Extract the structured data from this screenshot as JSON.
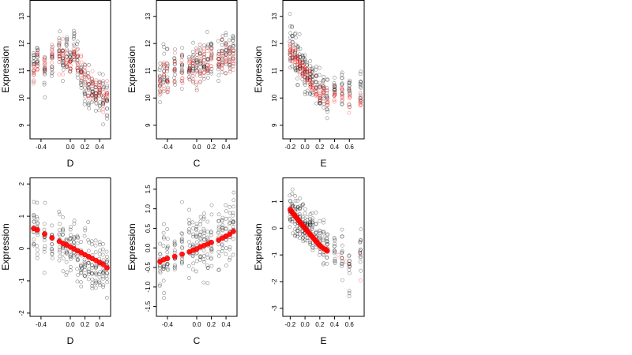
{
  "chart_data": [
    {
      "type": "scatter",
      "xlabel": "D",
      "ylabel": "Expression",
      "xlim": [
        -0.55,
        0.55
      ],
      "ylim": [
        8.5,
        13.6
      ],
      "xticks": [
        -0.4,
        0.0,
        0.2,
        0.4
      ],
      "xticklabels": [
        "-0.4",
        "0.0",
        "0.2",
        "0.4"
      ],
      "yticks": [
        9,
        10,
        11,
        12,
        13
      ],
      "yticklabels": [
        "9",
        "10",
        "11",
        "12",
        "13"
      ],
      "series": [
        {
          "color": "#000000",
          "style": "open-circle",
          "x_columns": [
            -0.5,
            -0.45,
            -0.35,
            -0.25,
            -0.15,
            -0.1,
            -0.05,
            0.0,
            0.05,
            0.1,
            0.15,
            0.2,
            0.25,
            0.3,
            0.35,
            0.4,
            0.45,
            0.5
          ],
          "y_means": [
            11.2,
            11.4,
            11.0,
            11.3,
            11.6,
            11.5,
            11.7,
            11.4,
            11.8,
            11.2,
            11.0,
            10.6,
            10.3,
            10.2,
            10.0,
            10.2,
            10.1,
            10.0
          ],
          "y_spread": 0.8
        },
        {
          "color": "#ff0000",
          "style": "open-circle",
          "x_columns": [
            -0.5,
            -0.45,
            -0.35,
            -0.25,
            -0.15,
            -0.1,
            -0.05,
            0.0,
            0.05,
            0.1,
            0.15,
            0.2,
            0.25,
            0.3,
            0.35,
            0.4,
            0.45,
            0.5
          ],
          "y_means": [
            11.0,
            11.3,
            11.2,
            11.4,
            11.5,
            11.6,
            11.5,
            11.3,
            11.5,
            11.3,
            11.1,
            10.8,
            10.5,
            10.4,
            10.2,
            10.3,
            10.0,
            10.1
          ],
          "y_spread": 0.6
        }
      ]
    },
    {
      "type": "scatter",
      "xlabel": "C",
      "ylabel": "Expression",
      "xlim": [
        -0.55,
        0.55
      ],
      "ylim": [
        8.5,
        13.6
      ],
      "xticks": [
        -0.4,
        0.0,
        0.2,
        0.4
      ],
      "xticklabels": [
        "-0.4",
        "0.0",
        "0.2",
        "0.4"
      ],
      "yticks": [
        9,
        10,
        11,
        12,
        13
      ],
      "yticklabels": [
        "9",
        "10",
        "11",
        "12",
        "13"
      ],
      "series": [
        {
          "color": "#000000",
          "style": "open-circle",
          "x_columns": [
            -0.5,
            -0.45,
            -0.4,
            -0.3,
            -0.2,
            -0.1,
            -0.05,
            0.0,
            0.05,
            0.1,
            0.15,
            0.2,
            0.3,
            0.35,
            0.4,
            0.45,
            0.5
          ],
          "y_means": [
            10.8,
            11.0,
            10.9,
            11.0,
            11.1,
            11.0,
            11.0,
            11.1,
            11.2,
            11.2,
            11.3,
            11.4,
            11.5,
            11.6,
            11.6,
            11.7,
            11.8
          ],
          "y_spread": 0.9
        },
        {
          "color": "#ff0000",
          "style": "open-circle",
          "x_columns": [
            -0.5,
            -0.45,
            -0.4,
            -0.3,
            -0.2,
            -0.1,
            -0.05,
            0.0,
            0.05,
            0.1,
            0.15,
            0.2,
            0.3,
            0.35,
            0.4,
            0.45,
            0.5
          ],
          "y_means": [
            10.6,
            10.9,
            10.8,
            10.9,
            11.0,
            11.0,
            11.1,
            11.0,
            11.2,
            11.3,
            11.2,
            11.4,
            11.3,
            11.5,
            11.5,
            11.6,
            11.7
          ],
          "y_spread": 0.7
        }
      ]
    },
    {
      "type": "scatter",
      "xlabel": "E",
      "ylabel": "Expression",
      "xlim": [
        -0.3,
        0.8
      ],
      "ylim": [
        8.5,
        13.6
      ],
      "xticks": [
        -0.2,
        0.0,
        0.2,
        0.4,
        0.6
      ],
      "xticklabels": [
        "-0.2",
        "0.0",
        "0.2",
        "0.4",
        "0.6"
      ],
      "yticks": [
        9,
        10,
        11,
        12,
        13
      ],
      "yticklabels": [
        "9",
        "10",
        "11",
        "12",
        "13"
      ],
      "series": [
        {
          "color": "#000000",
          "style": "open-circle",
          "x_columns": [
            -0.2,
            -0.17,
            -0.13,
            -0.1,
            -0.07,
            -0.03,
            0.0,
            0.03,
            0.07,
            0.1,
            0.15,
            0.2,
            0.25,
            0.3,
            0.4,
            0.5,
            0.6,
            0.75
          ],
          "y_means": [
            12.0,
            11.8,
            11.6,
            11.4,
            11.3,
            11.2,
            11.0,
            10.9,
            10.8,
            10.6,
            10.5,
            10.3,
            10.2,
            10.0,
            10.1,
            10.4,
            10.3,
            10.5
          ],
          "y_spread": 0.8
        },
        {
          "color": "#ff0000",
          "style": "open-circle",
          "x_columns": [
            -0.2,
            -0.17,
            -0.13,
            -0.1,
            -0.07,
            -0.03,
            0.0,
            0.03,
            0.07,
            0.1,
            0.15,
            0.2,
            0.25,
            0.3,
            0.4,
            0.5,
            0.6,
            0.75
          ],
          "y_means": [
            11.8,
            11.6,
            11.5,
            11.3,
            11.2,
            11.1,
            10.9,
            10.8,
            10.7,
            10.5,
            10.4,
            10.2,
            10.1,
            10.0,
            10.2,
            10.1,
            9.9,
            9.8
          ],
          "y_spread": 0.4
        }
      ]
    },
    {
      "type": "scatter",
      "xlabel": "D",
      "ylabel": "Expression",
      "xlim": [
        -0.55,
        0.55
      ],
      "ylim": [
        -2.1,
        2.2
      ],
      "xticks": [
        -0.4,
        0.0,
        0.2,
        0.4
      ],
      "xticklabels": [
        "-0.4",
        "0.0",
        "0.2",
        "0.4"
      ],
      "yticks": [
        -2,
        -1,
        0,
        1,
        2
      ],
      "yticklabels": [
        "-2",
        "-1",
        "0",
        "1",
        "2"
      ],
      "series": [
        {
          "color": "#000000",
          "style": "open-circle",
          "x_columns": [
            -0.5,
            -0.45,
            -0.35,
            -0.25,
            -0.15,
            -0.1,
            -0.05,
            0.0,
            0.05,
            0.1,
            0.15,
            0.2,
            0.25,
            0.3,
            0.35,
            0.4,
            0.45,
            0.5
          ],
          "y_means": [
            0.6,
            0.5,
            0.4,
            0.3,
            0.2,
            0.1,
            0.1,
            0.0,
            0.1,
            -0.1,
            -0.2,
            -0.3,
            -0.4,
            -0.4,
            -0.5,
            -0.5,
            -0.6,
            -0.7
          ],
          "y_spread": 0.9
        },
        {
          "color": "#ff0000",
          "style": "filled-circle",
          "name": "",
          "x": [
            -0.5,
            -0.45,
            -0.35,
            -0.25,
            -0.15,
            -0.1,
            -0.05,
            0.0,
            0.05,
            0.1,
            0.15,
            0.2,
            0.25,
            0.3,
            0.35,
            0.4,
            0.45,
            0.5
          ],
          "y": [
            0.62,
            0.58,
            0.45,
            0.33,
            0.22,
            0.16,
            0.11,
            0.05,
            -0.01,
            -0.07,
            -0.13,
            -0.19,
            -0.25,
            -0.31,
            -0.37,
            -0.43,
            -0.49,
            -0.6
          ]
        }
      ]
    },
    {
      "type": "scatter",
      "xlabel": "C",
      "ylabel": "Expression",
      "xlim": [
        -0.55,
        0.55
      ],
      "ylim": [
        -1.75,
        1.8
      ],
      "xticks": [
        -0.4,
        0.0,
        0.2,
        0.4
      ],
      "xticklabels": [
        "-0.4",
        "0.0",
        "0.2",
        "0.4"
      ],
      "yticks": [
        -1.5,
        -1.0,
        -0.5,
        0.0,
        0.5,
        1.0,
        1.5
      ],
      "yticklabels": [
        "-1.5",
        "-1.0",
        "-0.5",
        "0.0",
        "0.5",
        "1.0",
        "1.5"
      ],
      "series": [
        {
          "color": "#000000",
          "style": "open-circle",
          "x_columns": [
            -0.5,
            -0.45,
            -0.4,
            -0.3,
            -0.2,
            -0.1,
            -0.05,
            0.0,
            0.05,
            0.1,
            0.15,
            0.2,
            0.3,
            0.35,
            0.4,
            0.45,
            0.5
          ],
          "y_means": [
            -0.3,
            -0.25,
            -0.2,
            -0.15,
            -0.1,
            -0.05,
            0.0,
            0.0,
            0.05,
            0.1,
            0.15,
            0.2,
            0.25,
            0.3,
            0.35,
            0.4,
            0.45
          ],
          "y_spread": 0.9
        },
        {
          "color": "#ff0000",
          "style": "filled-circle",
          "x": [
            -0.5,
            -0.45,
            -0.4,
            -0.3,
            -0.2,
            -0.1,
            -0.05,
            0.0,
            0.05,
            0.1,
            0.15,
            0.2,
            0.3,
            0.35,
            0.4,
            0.45,
            0.5
          ],
          "y": [
            -0.35,
            -0.3,
            -0.27,
            -0.22,
            -0.16,
            -0.1,
            -0.06,
            -0.03,
            0.03,
            0.06,
            0.1,
            0.14,
            0.2,
            0.25,
            0.3,
            0.35,
            0.42
          ]
        }
      ]
    },
    {
      "type": "scatter",
      "xlabel": "E",
      "ylabel": "Expression",
      "xlim": [
        -0.3,
        0.8
      ],
      "ylim": [
        -3.3,
        1.9
      ],
      "xticks": [
        -0.2,
        0.0,
        0.2,
        0.4,
        0.6
      ],
      "xticklabels": [
        "-0.2",
        "0.0",
        "0.2",
        "0.4",
        "0.6"
      ],
      "yticks": [
        -3,
        -2,
        -1,
        0,
        1
      ],
      "yticklabels": [
        "-3",
        "-2",
        "-1",
        "0",
        "1"
      ],
      "series": [
        {
          "color": "#000000",
          "style": "open-circle",
          "x_columns": [
            -0.2,
            -0.17,
            -0.13,
            -0.1,
            -0.07,
            -0.03,
            0.0,
            0.03,
            0.07,
            0.1,
            0.15,
            0.2,
            0.25,
            0.3,
            0.4,
            0.5,
            0.6,
            0.75
          ],
          "y_means": [
            0.8,
            0.6,
            0.5,
            0.4,
            0.3,
            0.2,
            0.1,
            0.0,
            -0.1,
            -0.2,
            -0.3,
            -0.4,
            -0.5,
            -0.6,
            -0.9,
            -1.0,
            -1.5,
            -1.0
          ],
          "y_spread": 0.9
        },
        {
          "color": "#ff0000",
          "style": "filled-circle",
          "x": [
            -0.2,
            -0.18,
            -0.16,
            -0.14,
            -0.12,
            -0.1,
            -0.08,
            -0.06,
            -0.04,
            -0.02,
            0.0,
            0.02,
            0.04,
            0.06,
            0.08,
            0.1,
            0.12,
            0.14,
            0.16,
            0.18,
            0.2,
            0.22,
            0.25,
            0.28,
            0.3
          ],
          "y": [
            0.7,
            0.62,
            0.55,
            0.48,
            0.41,
            0.34,
            0.27,
            0.2,
            0.13,
            0.06,
            0.0,
            -0.07,
            -0.13,
            -0.2,
            -0.26,
            -0.33,
            -0.39,
            -0.46,
            -0.52,
            -0.58,
            -0.64,
            -0.7,
            -0.75,
            -0.8,
            -0.85
          ]
        },
        {
          "color": "#ff0000",
          "style": "open-circle",
          "x": [
            0.45,
            0.5,
            0.55,
            0.6,
            0.75,
            0.75
          ],
          "y": [
            -1.0,
            -1.1,
            -1.25,
            -1.4,
            -1.95,
            -1.0
          ]
        }
      ]
    }
  ]
}
